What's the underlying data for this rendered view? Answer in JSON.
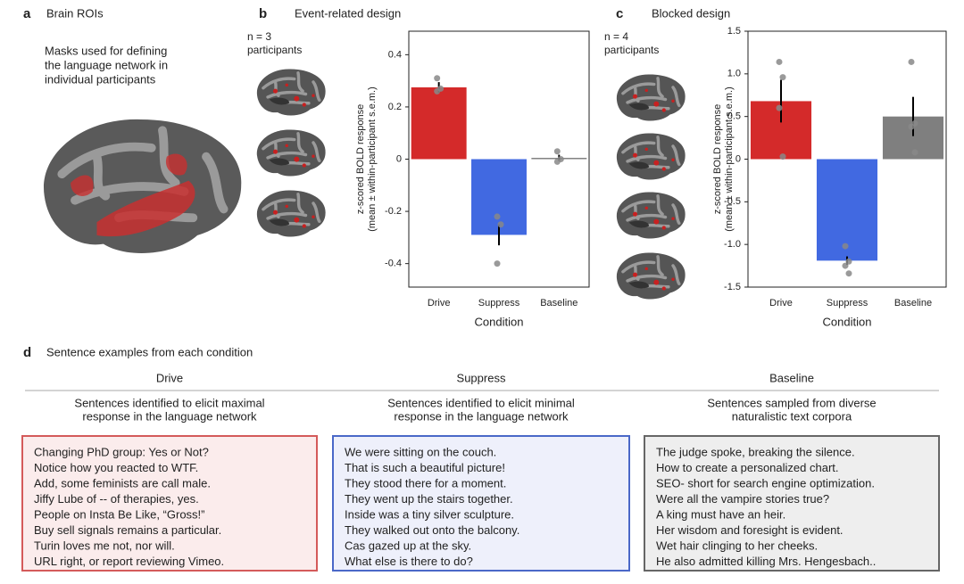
{
  "panel_a": {
    "letter": "a",
    "title": "Brain ROIs",
    "caption": [
      "Masks used for defining",
      "the language network in",
      "individual participants"
    ]
  },
  "chart_data": [
    {
      "type": "bar",
      "letter": "b",
      "title": "Event-related design",
      "n_label": "n = 3",
      "n_caption": "participants",
      "categories": [
        "Drive",
        "Suppress",
        "Baseline"
      ],
      "colors": [
        "#d42a2a",
        "#4169e1",
        "#7f7f7f"
      ],
      "values": [
        0.275,
        -0.29,
        0.005
      ],
      "errors": [
        0.02,
        0.04,
        0.012
      ],
      "points": [
        [
          0.31,
          0.27,
          0.26
        ],
        [
          -0.22,
          -0.25,
          -0.4
        ],
        [
          0.03,
          0.0,
          -0.01
        ]
      ],
      "ylim": [
        -0.49,
        0.49
      ],
      "yticks": [
        -0.4,
        -0.2,
        0,
        0.2,
        0.4
      ],
      "xlabel": "Condition",
      "ylabel": [
        "z-scored BOLD response",
        "(mean ± within-participant s.e.m.)"
      ]
    },
    {
      "type": "bar",
      "letter": "c",
      "title": "Blocked design",
      "n_label": "n = 4",
      "n_caption": "participants",
      "categories": [
        "Drive",
        "Suppress",
        "Baseline"
      ],
      "colors": [
        "#d42a2a",
        "#4169e1",
        "#7f7f7f"
      ],
      "values": [
        0.68,
        -1.19,
        0.5
      ],
      "errors": [
        0.25,
        0.05,
        0.23
      ],
      "points": [
        [
          1.14,
          0.96,
          0.6,
          0.03
        ],
        [
          -1.02,
          -1.2,
          -1.25,
          -1.34
        ],
        [
          1.14,
          0.42,
          0.38,
          0.08
        ]
      ],
      "ylim": [
        -1.5,
        1.5
      ],
      "yticks": [
        -1.5,
        {
          "value": -1,
          "label": "-1.0"
        },
        -0.5,
        0,
        0.5,
        {
          "value": 1,
          "label": "1.0"
        },
        1.5
      ],
      "xlabel": "Condition",
      "ylabel": [
        "z-scored BOLD response",
        "(mean ± within-participant s.e.m.)"
      ]
    }
  ],
  "panel_d": {
    "letter": "d",
    "title": "Sentence examples from each condition",
    "columns": [
      {
        "header": "Drive",
        "description": [
          "Sentences identified to elicit maximal",
          "response in the language network"
        ],
        "stroke": "#d45a5a",
        "fill": "#fbecec",
        "sentences": [
          "Changing PhD group: Yes or Not?",
          "Notice how you reacted to WTF.",
          "Add, some feminists are call male.",
          "Jiffy Lube of -- of therapies, yes.",
          "People on Insta Be Like, “Gross!”",
          "Buy sell signals remains a particular.",
          "Turin loves me not, nor will.",
          "URL right, or report reviewing Vimeo."
        ]
      },
      {
        "header": "Suppress",
        "description": [
          "Sentences identified to elicit minimal",
          "response in the language network"
        ],
        "stroke": "#4a68c8",
        "fill": "#eef0fb",
        "sentences": [
          "We were sitting on the couch.",
          "That is such a beautiful picture!",
          "They stood there for a moment.",
          "They went up the stairs together.",
          "Inside was a tiny silver sculpture.",
          "They walked out onto the balcony.",
          "Cas gazed up at the sky.",
          "What else is there to do?"
        ]
      },
      {
        "header": "Baseline",
        "description": [
          "Sentences sampled from diverse",
          "naturalistic text corpora"
        ],
        "stroke": "#666666",
        "fill": "#eeeeee",
        "sentences": [
          "The judge spoke, breaking the silence.",
          "How to create a personalized chart.",
          "SEO- short for search engine optimization.",
          "Were all the vampire stories true?",
          "A king must have an heir.",
          "Her wisdom and foresight is evident.",
          "Wet hair clinging to her cheeks.",
          "He also admitted killing Mrs. Hengesbach.."
        ]
      }
    ]
  }
}
